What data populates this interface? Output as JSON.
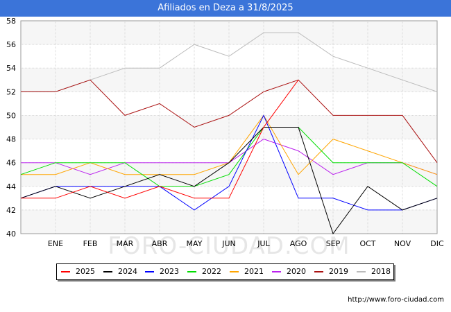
{
  "title": "Afiliados en Deza a 31/8/2025",
  "footer": "http://www.foro-ciudad.com",
  "watermark": "FORO-CIUDAD.COM",
  "chart_data": {
    "type": "line",
    "title": "Afiliados en Deza a 31/8/2025",
    "xlabel": "",
    "ylabel": "",
    "categories": [
      "",
      "ENE",
      "FEB",
      "MAR",
      "ABR",
      "MAY",
      "JUN",
      "JUL",
      "AGO",
      "SEP",
      "OCT",
      "NOV",
      "DIC"
    ],
    "ylim": [
      40,
      58
    ],
    "yticks": [
      40,
      42,
      44,
      46,
      48,
      50,
      52,
      54,
      56,
      58
    ],
    "grid": true,
    "legend_position": "bottom",
    "series": [
      {
        "name": "2025",
        "color": "#ff0000",
        "values": [
          43,
          43,
          44,
          43,
          44,
          43,
          43,
          49,
          53,
          null,
          null,
          null,
          null
        ]
      },
      {
        "name": "2024",
        "color": "#000000",
        "values": [
          43,
          44,
          43,
          44,
          45,
          44,
          46,
          49,
          49,
          40,
          44,
          42,
          43
        ]
      },
      {
        "name": "2023",
        "color": "#0000ff",
        "values": [
          43,
          44,
          44,
          44,
          44,
          42,
          44,
          50,
          43,
          43,
          42,
          42,
          43
        ]
      },
      {
        "name": "2022",
        "color": "#00dd00",
        "values": [
          45,
          46,
          46,
          46,
          44,
          44,
          45,
          49,
          49,
          46,
          46,
          46,
          44
        ]
      },
      {
        "name": "2021",
        "color": "#ffa500",
        "values": [
          45,
          45,
          46,
          45,
          45,
          45,
          46,
          50,
          45,
          48,
          47,
          46,
          45
        ]
      },
      {
        "name": "2020",
        "color": "#bb22ee",
        "values": [
          46,
          46,
          45,
          46,
          46,
          46,
          46,
          48,
          47,
          45,
          46,
          46,
          45
        ]
      },
      {
        "name": "2019",
        "color": "#aa1111",
        "values": [
          52,
          52,
          53,
          50,
          51,
          49,
          50,
          52,
          53,
          50,
          50,
          50,
          46
        ]
      },
      {
        "name": "2018",
        "color": "#bbbbbb",
        "values": [
          52,
          52,
          53,
          54,
          54,
          56,
          55,
          57,
          57,
          55,
          54,
          53,
          52
        ]
      }
    ]
  }
}
